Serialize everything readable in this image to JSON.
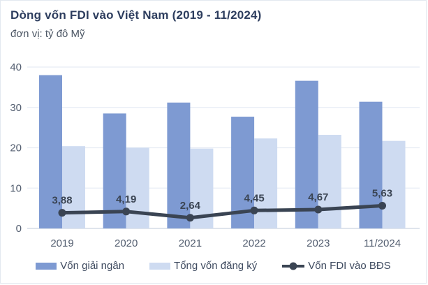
{
  "card": {
    "title": "Dòng vốn FDI vào Việt Nam (2019 - 11/2024)",
    "subtitle": "đơn vị: tỷ đô Mỹ"
  },
  "colors": {
    "bar_dark": "#7e9ad2",
    "bar_light": "#cedbf1",
    "line": "#3a4453",
    "grid": "#e7ecf4",
    "axis": "#ccd4e1",
    "title": "#2d3d5e",
    "subtitle": "#4d5765",
    "tick": "#525d6f",
    "point_label": "#3a4453",
    "legend_text": "#3f4b60"
  },
  "chart_data": {
    "type": "bar",
    "title": "Dòng vốn FDI vào Việt Nam (2019 - 11/2024)",
    "subtitle": "đơn vị: tỷ đô Mỹ",
    "unit": "tỷ đô Mỹ",
    "categories": [
      "2019",
      "2020",
      "2021",
      "2022",
      "2023",
      "11/2024"
    ],
    "series": [
      {
        "name": "Vốn giải ngân",
        "key": "von-giai-ngan",
        "type": "bar",
        "color_key": "bar_dark",
        "values": [
          38.0,
          28.5,
          31.2,
          27.7,
          36.6,
          31.4
        ]
      },
      {
        "name": "Tổng vốn đăng ký",
        "key": "tong-von-dang-ky",
        "type": "bar",
        "color_key": "bar_light",
        "values": [
          20.4,
          20.0,
          19.8,
          22.3,
          23.2,
          21.7
        ]
      },
      {
        "name": "Vốn FDI vào BĐS",
        "key": "von-fdi-vao-bds",
        "type": "line",
        "color_key": "line",
        "values": [
          3.88,
          4.19,
          2.64,
          4.45,
          4.67,
          5.63
        ],
        "labels": [
          "3,88",
          "4,19",
          "2,64",
          "4,45",
          "4,67",
          "5,63"
        ]
      }
    ],
    "xlabel": "",
    "ylabel": "",
    "ylim": [
      0,
      40
    ],
    "yticks": [
      0,
      10,
      20,
      30,
      40
    ],
    "grid": true,
    "legend_position": "bottom"
  },
  "legend": {
    "items": [
      {
        "label": "Vốn giải ngân",
        "swatch_color_key": "bar_dark",
        "swatch_type": "rect"
      },
      {
        "label": "Tổng vốn đăng ký",
        "swatch_color_key": "bar_light",
        "swatch_type": "rect"
      },
      {
        "label": "Vốn FDI vào BĐS",
        "swatch_color_key": "line",
        "swatch_type": "line"
      }
    ]
  }
}
